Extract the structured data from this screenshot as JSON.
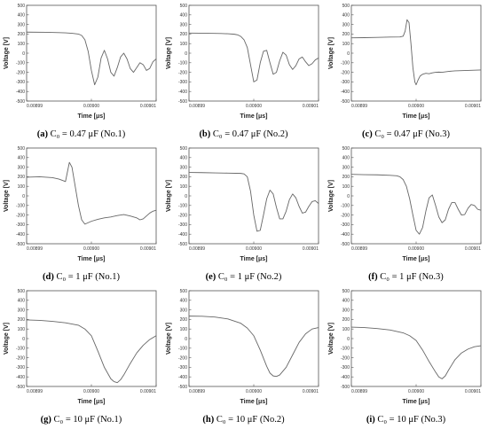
{
  "chart_data": [
    {
      "type": "line",
      "ylabel": "Voltage [V]",
      "xlabel": "Time [μs]",
      "ylim": [
        -500,
        500
      ],
      "xlim": [
        0.00899,
        0.00901
      ],
      "x_ticks": [
        "0.00899",
        "0.00900",
        "0.00901"
      ],
      "y_ticks": [
        -500,
        -400,
        -300,
        -200,
        -100,
        0,
        100,
        200,
        300,
        400,
        500
      ],
      "caption_label": "(a)",
      "caption_text": "C₀ = 0.47 μF (No.1)",
      "series": [
        {
          "x": [
            0.00899,
            0.008993,
            0.008995,
            0.008996,
            0.008997,
            0.008998,
            0.0089985,
            0.008999,
            0.0089995,
            0.009,
            0.0090005,
            0.009001,
            0.0090015,
            0.009002,
            0.0090025,
            0.009003,
            0.0090035,
            0.009004,
            0.0090045,
            0.009005,
            0.0090055,
            0.009006,
            0.0090065,
            0.009007,
            0.0090075,
            0.009008,
            0.0090085,
            0.009009,
            0.0090095,
            0.00901
          ],
          "y": [
            220,
            218,
            215,
            212,
            208,
            200,
            185,
            140,
            20,
            -180,
            -330,
            -250,
            -50,
            30,
            -60,
            -200,
            -240,
            -150,
            -40,
            0,
            -60,
            -160,
            -200,
            -150,
            -100,
            -120,
            -180,
            -160,
            -90,
            -60
          ]
        }
      ]
    },
    {
      "type": "line",
      "ylabel": "Voltage [V]",
      "xlabel": "Time [μs]",
      "ylim": [
        -500,
        500
      ],
      "xlim": [
        0.00899,
        0.00901
      ],
      "x_ticks": [
        "0.00899",
        "0.00900",
        "0.00901"
      ],
      "y_ticks": [
        -500,
        -400,
        -300,
        -200,
        -100,
        0,
        100,
        200,
        300,
        400,
        500
      ],
      "caption_label": "(b)",
      "caption_text": "C₀ = 0.47 μF (No.2)",
      "series": [
        {
          "x": [
            0.00899,
            0.008993,
            0.008995,
            0.008996,
            0.008997,
            0.0089975,
            0.008998,
            0.0089985,
            0.008999,
            0.0089995,
            0.009,
            0.0090005,
            0.009001,
            0.0090015,
            0.009002,
            0.0090025,
            0.009003,
            0.0090035,
            0.009004,
            0.0090045,
            0.009005,
            0.0090055,
            0.009006,
            0.0090065,
            0.009007,
            0.0090075,
            0.009008,
            0.0090085,
            0.009009,
            0.0090095,
            0.00901
          ],
          "y": [
            210,
            208,
            205,
            203,
            198,
            192,
            175,
            140,
            60,
            -120,
            -300,
            -280,
            -100,
            20,
            30,
            -100,
            -220,
            -200,
            -80,
            10,
            -20,
            -120,
            -170,
            -130,
            -60,
            -40,
            -90,
            -130,
            -110,
            -70,
            -50
          ]
        }
      ]
    },
    {
      "type": "line",
      "ylabel": "Voltage [V]",
      "xlabel": "Time [μs]",
      "ylim": [
        -500,
        500
      ],
      "xlim": [
        0.00899,
        0.00901
      ],
      "x_ticks": [
        "0.00899",
        "0.00900",
        "0.00901"
      ],
      "y_ticks": [
        -500,
        -400,
        -300,
        -200,
        -100,
        0,
        100,
        200,
        300,
        400,
        500
      ],
      "caption_label": "(c)",
      "caption_text": "C₀ = 0.47 μF (No.3)",
      "series": [
        {
          "x": [
            0.00899,
            0.008992,
            0.008994,
            0.008996,
            0.0089975,
            0.008998,
            0.0089983,
            0.0089986,
            0.0089989,
            0.0089992,
            0.0089995,
            0.0089998,
            0.009,
            0.0090003,
            0.0090006,
            0.009001,
            0.0090015,
            0.009002,
            0.0090025,
            0.009003,
            0.0090035,
            0.009004,
            0.0090045,
            0.009005,
            0.009006,
            0.009007,
            0.009008,
            0.009009,
            0.00901
          ],
          "y": [
            160,
            162,
            165,
            168,
            170,
            178,
            230,
            350,
            320,
            100,
            -150,
            -300,
            -330,
            -280,
            -240,
            -220,
            -210,
            -215,
            -205,
            -200,
            -198,
            -200,
            -195,
            -190,
            -185,
            -182,
            -180,
            -178,
            -175
          ]
        }
      ]
    },
    {
      "type": "line",
      "ylabel": "Voltage [V]",
      "xlabel": "Time [μs]",
      "ylim": [
        -500,
        500
      ],
      "xlim": [
        0.00899,
        0.00901
      ],
      "x_ticks": [
        "0.00899",
        "0.00900",
        "0.00901"
      ],
      "y_ticks": [
        -500,
        -400,
        -300,
        -200,
        -100,
        0,
        100,
        200,
        300,
        400,
        500
      ],
      "caption_label": "(d)",
      "caption_text": "C₀ = 1 μF (No.1)",
      "series": [
        {
          "x": [
            0.00899,
            0.008992,
            0.008994,
            0.008995,
            0.008996,
            0.0089963,
            0.0089966,
            0.008997,
            0.0089975,
            0.008998,
            0.0089985,
            0.008999,
            0.0089995,
            0.009,
            0.009001,
            0.009002,
            0.009003,
            0.009004,
            0.009005,
            0.009006,
            0.009007,
            0.0090075,
            0.009008,
            0.0090085,
            0.009009,
            0.0090095,
            0.00901
          ],
          "y": [
            195,
            200,
            190,
            175,
            150,
            250,
            350,
            300,
            100,
            -100,
            -250,
            -295,
            -280,
            -265,
            -245,
            -230,
            -220,
            -205,
            -195,
            -210,
            -230,
            -250,
            -240,
            -210,
            -180,
            -160,
            -150
          ]
        }
      ]
    },
    {
      "type": "line",
      "ylabel": "Voltage [V]",
      "xlabel": "Time [μs]",
      "ylim": [
        -500,
        500
      ],
      "xlim": [
        0.00899,
        0.00901
      ],
      "x_ticks": [
        "0.00899",
        "0.00900",
        "0.00901"
      ],
      "y_ticks": [
        -500,
        -400,
        -300,
        -200,
        -100,
        0,
        100,
        200,
        300,
        400,
        500
      ],
      "caption_label": "(e)",
      "caption_text": "C₀ = 1 μF (No.2)",
      "series": [
        {
          "x": [
            0.00899,
            0.008992,
            0.008994,
            0.008996,
            0.008998,
            0.0089985,
            0.008999,
            0.0089995,
            0.009,
            0.0090005,
            0.009001,
            0.0090015,
            0.009002,
            0.0090025,
            0.009003,
            0.0090035,
            0.009004,
            0.0090045,
            0.009005,
            0.0090055,
            0.009006,
            0.0090065,
            0.009007,
            0.0090075,
            0.009008,
            0.0090085,
            0.009009,
            0.0090095,
            0.00901
          ],
          "y": [
            245,
            243,
            240,
            238,
            235,
            230,
            200,
            50,
            -200,
            -370,
            -360,
            -200,
            -30,
            60,
            20,
            -120,
            -240,
            -240,
            -160,
            -40,
            20,
            -20,
            -110,
            -180,
            -170,
            -110,
            -60,
            -50,
            -80
          ]
        }
      ]
    },
    {
      "type": "line",
      "ylabel": "Voltage [V]",
      "xlabel": "Time [μs]",
      "ylim": [
        -500,
        500
      ],
      "xlim": [
        0.00899,
        0.00901
      ],
      "x_ticks": [
        "0.00899",
        "0.00900",
        "0.00901"
      ],
      "y_ticks": [
        -500,
        -400,
        -300,
        -200,
        -100,
        0,
        100,
        200,
        300,
        400,
        500
      ],
      "caption_label": "(f)",
      "caption_text": "C₀ = 1 μF (No.3)",
      "series": [
        {
          "x": [
            0.00899,
            0.008992,
            0.008994,
            0.008996,
            0.008997,
            0.0089975,
            0.008998,
            0.0089985,
            0.008999,
            0.0089995,
            0.009,
            0.0090005,
            0.009001,
            0.0090015,
            0.009002,
            0.0090025,
            0.009003,
            0.0090035,
            0.009004,
            0.0090045,
            0.009005,
            0.0090055,
            0.009006,
            0.0090065,
            0.009007,
            0.0090075,
            0.009008,
            0.0090085,
            0.009009,
            0.0090095,
            0.00901
          ],
          "y": [
            225,
            222,
            220,
            215,
            210,
            200,
            170,
            100,
            -30,
            -200,
            -360,
            -400,
            -330,
            -160,
            -20,
            10,
            -100,
            -220,
            -280,
            -250,
            -140,
            -70,
            -70,
            -140,
            -200,
            -195,
            -130,
            -90,
            -100,
            -140,
            -150
          ]
        }
      ]
    },
    {
      "type": "line",
      "ylabel": "Voltage [V]",
      "xlabel": "Time [μs]",
      "ylim": [
        -500,
        500
      ],
      "xlim": [
        0.00899,
        0.00901
      ],
      "x_ticks": [
        "0.00899",
        "0.00900",
        "0.00901"
      ],
      "y_ticks": [
        -500,
        -400,
        -300,
        -200,
        -100,
        0,
        100,
        200,
        300,
        400,
        500
      ],
      "caption_label": "(g)",
      "caption_text": "C₀ = 10 μF (No.1)",
      "series": [
        {
          "x": [
            0.00899,
            0.008992,
            0.008994,
            0.008996,
            0.008998,
            0.008999,
            0.009,
            0.009001,
            0.009002,
            0.009003,
            0.0090035,
            0.009004,
            0.0090045,
            0.009005,
            0.009006,
            0.009007,
            0.009008,
            0.009009,
            0.00901
          ],
          "y": [
            195,
            190,
            180,
            165,
            140,
            100,
            30,
            -130,
            -300,
            -420,
            -450,
            -460,
            -430,
            -380,
            -260,
            -150,
            -70,
            -10,
            30
          ]
        }
      ]
    },
    {
      "type": "line",
      "ylabel": "Voltage [V]",
      "xlabel": "Time [μs]",
      "ylim": [
        -500,
        500
      ],
      "xlim": [
        0.00899,
        0.00901
      ],
      "x_ticks": [
        "0.00899",
        "0.00900",
        "0.00901"
      ],
      "y_ticks": [
        -500,
        -400,
        -300,
        -200,
        -100,
        0,
        100,
        200,
        300,
        400,
        500
      ],
      "caption_label": "(h)",
      "caption_text": "C₀ = 10 μF (No.2)",
      "series": [
        {
          "x": [
            0.00899,
            0.008992,
            0.008994,
            0.008996,
            0.008998,
            0.008999,
            0.009,
            0.009001,
            0.009002,
            0.0090025,
            0.009003,
            0.0090035,
            0.009004,
            0.009005,
            0.009006,
            0.009007,
            0.009008,
            0.009009,
            0.00901
          ],
          "y": [
            235,
            233,
            225,
            205,
            160,
            110,
            30,
            -120,
            -290,
            -360,
            -390,
            -395,
            -380,
            -300,
            -170,
            -40,
            50,
            100,
            115
          ]
        }
      ]
    },
    {
      "type": "line",
      "ylabel": "Voltage [V]",
      "xlabel": "Time [μs]",
      "ylim": [
        -500,
        500
      ],
      "xlim": [
        0.00899,
        0.00901
      ],
      "x_ticks": [
        "0.00899",
        "0.00900",
        "0.00901"
      ],
      "y_ticks": [
        -500,
        -400,
        -300,
        -200,
        -100,
        0,
        100,
        200,
        300,
        400,
        500
      ],
      "caption_label": "(i)",
      "caption_text": "C₀ = 10 μF (No.3)",
      "series": [
        {
          "x": [
            0.00899,
            0.008992,
            0.008994,
            0.008996,
            0.008998,
            0.008999,
            0.009,
            0.009001,
            0.009002,
            0.009003,
            0.0090035,
            0.009004,
            0.0090045,
            0.009005,
            0.009006,
            0.009007,
            0.009008,
            0.009009,
            0.00901
          ],
          "y": [
            120,
            115,
            105,
            90,
            60,
            30,
            -20,
            -120,
            -240,
            -350,
            -400,
            -420,
            -390,
            -330,
            -220,
            -150,
            -110,
            -85,
            -75
          ]
        }
      ]
    }
  ]
}
